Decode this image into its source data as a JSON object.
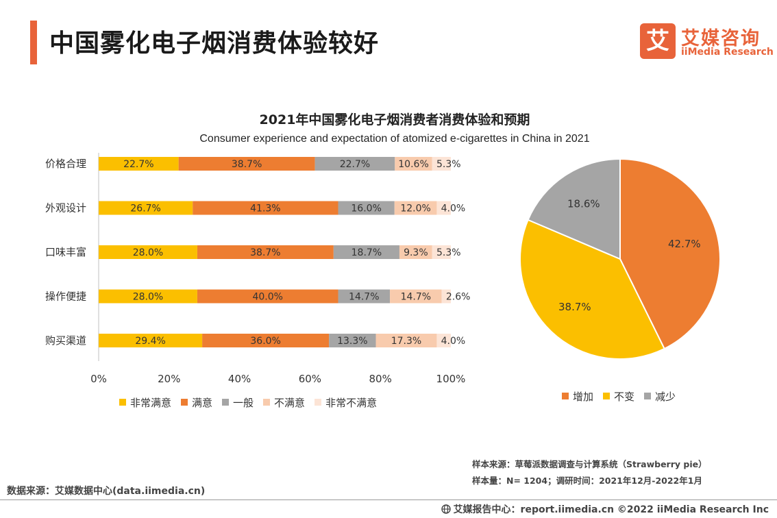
{
  "header": {
    "title": "中国雾化电子烟消费体验较好",
    "logo_mark": "艾",
    "logo_cn": "艾媒咨询",
    "logo_en": "iiMedia Research"
  },
  "chart_data": [
    {
      "type": "bar",
      "stacked": true,
      "orientation": "horizontal",
      "title": "2021年中国雾化电子烟消费者消费体验和预期",
      "subtitle": "Consumer experience and expectation of atomized e-cigarettes in China in 2021",
      "categories": [
        "价格合理",
        "外观设计",
        "口味丰富",
        "操作便捷",
        "购买渠道"
      ],
      "series": [
        {
          "name": "非常满意",
          "color": "#fbbf00",
          "values": [
            22.7,
            26.7,
            28.0,
            28.0,
            29.4
          ]
        },
        {
          "name": "满意",
          "color": "#ed7d31",
          "values": [
            38.7,
            41.3,
            38.7,
            40.0,
            36.0
          ]
        },
        {
          "name": "一般",
          "color": "#a5a5a5",
          "values": [
            22.7,
            16.0,
            18.7,
            14.7,
            13.3
          ]
        },
        {
          "name": "不满意",
          "color": "#f8cbad",
          "values": [
            10.6,
            12.0,
            9.3,
            14.7,
            17.3
          ]
        },
        {
          "name": "非常不满意",
          "color": "#fce4d6",
          "values": [
            5.3,
            4.0,
            5.3,
            2.6,
            4.0
          ]
        }
      ],
      "x_ticks": [
        "0%",
        "20%",
        "40%",
        "60%",
        "80%",
        "100%"
      ],
      "xlim": [
        0,
        100
      ],
      "legend": "bottom"
    },
    {
      "type": "pie",
      "slices": [
        {
          "name": "增加",
          "value": 42.7,
          "label": "42.7%",
          "color": "#ed7d31"
        },
        {
          "name": "不变",
          "value": 38.7,
          "label": "38.7%",
          "color": "#fbbf00"
        },
        {
          "name": "减少",
          "value": 18.6,
          "label": "18.6%",
          "color": "#a5a5a5"
        }
      ],
      "legend": "bottom"
    }
  ],
  "notes": {
    "sample_source": "样本来源：草莓派数据调查与计算系统（Strawberry pie）",
    "sample_size": "样本量：N= 1204；调研时间：2021年12月-2022年1月",
    "data_source": "数据来源：艾媒数据中心(data.iimedia.cn)"
  },
  "footer": {
    "text": "艾媒报告中心：report.iimedia.cn  ©2022  iiMedia Research  Inc"
  }
}
